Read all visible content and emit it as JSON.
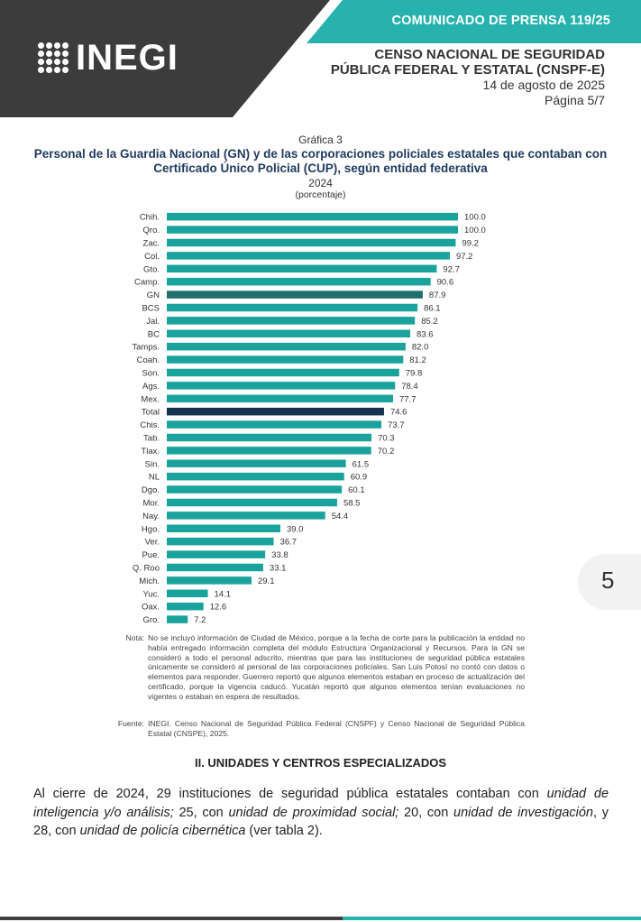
{
  "header": {
    "press_release": "COMUNICADO DE PRENSA 119/25",
    "logo_text": "INEGI",
    "census_line1": "CENSO NACIONAL DE SEGURIDAD",
    "census_line2": "PÚBLICA FEDERAL Y ESTATAL (CNSPF-E)",
    "date": "14 de agosto de 2025",
    "page": "Página 5/7",
    "colors": {
      "dark": "#3c3c3c",
      "teal": "#27b2ad"
    }
  },
  "chart_header": {
    "label": "Gráfica 3",
    "title": "Personal de la Guardia Nacional (GN) y de las corporaciones policiales estatales que contaban con Certificado Único Policial (CUP), según entidad federativa",
    "year": "2024",
    "unit": "(porcentaje)"
  },
  "chart_data": {
    "type": "bar",
    "orientation": "horizontal",
    "categories": [
      "Chih.",
      "Qro.",
      "Zac.",
      "Col.",
      "Gto.",
      "Camp.",
      "GN",
      "BCS",
      "Jal.",
      "BC",
      "Tamps.",
      "Coah.",
      "Son.",
      "Ags.",
      "Mex.",
      "Total",
      "Chis.",
      "Tab.",
      "Tlax.",
      "Sin.",
      "NL",
      "Dgo.",
      "Mor.",
      "Nay.",
      "Hgo.",
      "Ver.",
      "Pue.",
      "Q. Roo",
      "Mich.",
      "Yuc.",
      "Oax.",
      "Gro."
    ],
    "values": [
      100.0,
      100.0,
      99.2,
      97.2,
      92.7,
      90.6,
      87.9,
      86.1,
      85.2,
      83.6,
      82.0,
      81.2,
      79.8,
      78.4,
      77.7,
      74.6,
      73.7,
      70.3,
      70.2,
      61.5,
      60.9,
      60.1,
      58.5,
      54.4,
      39.0,
      36.7,
      33.8,
      33.1,
      29.1,
      14.1,
      12.6,
      7.2
    ],
    "value_labels": [
      "100.0",
      "100.0",
      "99.2",
      "97.2",
      "92.7",
      "90.6",
      "87.9",
      "86.1",
      "85.2",
      "83.6",
      "82.0",
      "81.2",
      "79.8",
      "78.4",
      "77.7",
      "74.6",
      "73.7",
      "70.3",
      "70.2",
      "61.5",
      "60.9",
      "60.1",
      "58.5",
      "54.4",
      "39.0",
      "36.7",
      "33.8",
      "33.1",
      "29.1",
      "14.1",
      "12.6",
      "7.2"
    ],
    "xlim": [
      0,
      100
    ],
    "colors": {
      "default": "#1aa39d",
      "GN": "#1f6f6e",
      "Total": "#17324f"
    },
    "grid": false,
    "legend": "none"
  },
  "notes": {
    "note_label": "Nota:",
    "note_text": "No se incluyó información de Ciudad de México, porque a la fecha de corte para la publicación la entidad no había entregado información completa del módulo Estructura Organizacional y Recursos. Para la GN se consideró a todo el personal adscrito, mientras que para las instituciones de seguridad pública estatales únicamente se consideró al personal de las corporaciones policiales. San Luis Potosí no contó con datos o elementos para responder. Guerrero reportó que algunos elementos estaban en proceso de actualización del certificado, porque la vigencia caducó. Yucatán reportó que algunos elementos tenían evaluaciones no vigentes o estaban en espera de resultados.",
    "source_label": "Fuente:",
    "source_text": "INEGI. Censo Nacional de Seguridad Pública Federal (CNSPF) y Censo Nacional de Seguridad Pública Estatal (CNSPE), 2025."
  },
  "section": {
    "title": "II. UNIDADES Y CENTROS ESPECIALIZADOS",
    "para_1": "Al cierre de 2024, 29 instituciones de seguridad pública estatales contaban con ",
    "para_2": "unidad de inteligencia y/o análisis;",
    "para_3": " 25, con ",
    "para_4": "unidad de proximidad social;",
    "para_5": " 20, con ",
    "para_6": "unidad de investigación",
    "para_7": ", y 28, con ",
    "para_8": "unidad de policía cibernética",
    "para_9": " (ver tabla 2)."
  },
  "page_number": "5"
}
